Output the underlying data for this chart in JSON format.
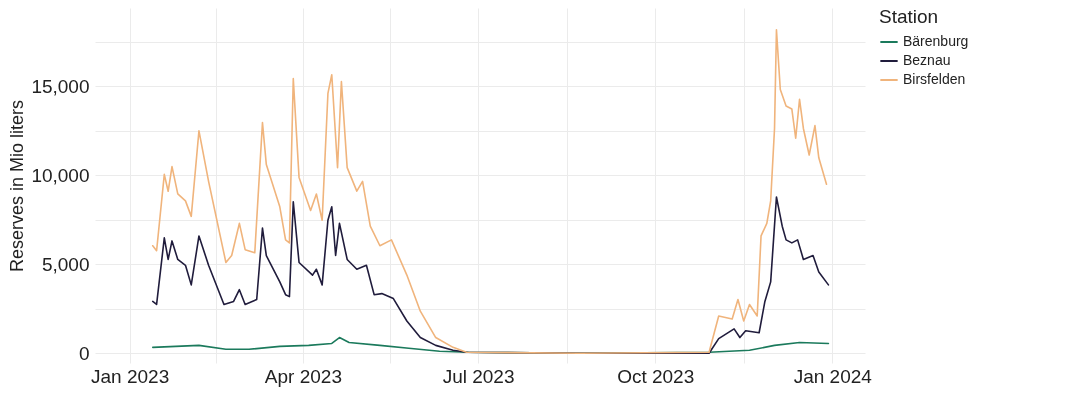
{
  "chart_data": {
    "type": "line",
    "ylabel": "Reserves in Mio liters",
    "legend_title": "Station",
    "legend": "right",
    "grid": true,
    "xlim": [
      "2022-12-14",
      "2024-01-18"
    ],
    "ylim": [
      -550,
      19400
    ],
    "xticks": [
      {
        "value": "2023-01-01",
        "label": "Jan 2023"
      },
      {
        "value": "2023-02-15",
        "label": null
      },
      {
        "value": "2023-04-01",
        "label": "Apr 2023"
      },
      {
        "value": "2023-05-16",
        "label": null
      },
      {
        "value": "2023-07-01",
        "label": "Jul 2023"
      },
      {
        "value": "2023-08-16",
        "label": null
      },
      {
        "value": "2023-10-01",
        "label": "Oct 2023"
      },
      {
        "value": "2023-11-16",
        "label": null
      },
      {
        "value": "2024-01-01",
        "label": "Jan 2024"
      }
    ],
    "yticks": [
      0,
      {
        "value": 2500,
        "label": null
      },
      {
        "value": 5000,
        "label": "5,000"
      },
      {
        "value": 7500,
        "label": null
      },
      {
        "value": 10000,
        "label": "10,000"
      },
      {
        "value": 12500,
        "label": null
      },
      {
        "value": 15000,
        "label": "15,000"
      },
      {
        "value": 17500,
        "label": null
      }
    ],
    "series": [
      {
        "name": "Bärenburg",
        "color": "#1b7a5c",
        "x": [
          "2023-01-13",
          "2023-02-06",
          "2023-02-20",
          "2023-03-04",
          "2023-03-20",
          "2023-04-04",
          "2023-04-16",
          "2023-04-20",
          "2023-04-25",
          "2023-05-11",
          "2023-05-26",
          "2023-06-11",
          "2023-06-26",
          "2023-08-23",
          "2023-10-29",
          "2023-11-19",
          "2023-12-02",
          "2023-12-15",
          "2023-12-30"
        ],
        "values": [
          330,
          440,
          220,
          220,
          385,
          440,
          550,
          880,
          600,
          440,
          275,
          110,
          55,
          0,
          55,
          165,
          440,
          600,
          550
        ]
      },
      {
        "name": "Beznau",
        "color": "#201c3c",
        "x": [
          "2023-01-13",
          "2023-01-15",
          "2023-01-19",
          "2023-01-21",
          "2023-01-23",
          "2023-01-26",
          "2023-01-30",
          "2023-02-02",
          "2023-02-06",
          "2023-02-11",
          "2023-02-19",
          "2023-02-24",
          "2023-02-27",
          "2023-03-02",
          "2023-03-08",
          "2023-03-11",
          "2023-03-13",
          "2023-03-20",
          "2023-03-23",
          "2023-03-25",
          "2023-03-27",
          "2023-03-30",
          "2023-04-06",
          "2023-04-08",
          "2023-04-11",
          "2023-04-14",
          "2023-04-16",
          "2023-04-18",
          "2023-04-20",
          "2023-04-24",
          "2023-04-29",
          "2023-05-04",
          "2023-05-08",
          "2023-05-12",
          "2023-05-18",
          "2023-05-25",
          "2023-06-01",
          "2023-06-09",
          "2023-06-18",
          "2023-06-25",
          "2023-08-23",
          "2023-10-29",
          "2023-11-03",
          "2023-11-11",
          "2023-11-14",
          "2023-11-17",
          "2023-11-24",
          "2023-11-27",
          "2023-11-30",
          "2023-12-03",
          "2023-12-06",
          "2023-12-08",
          "2023-12-11",
          "2023-12-14",
          "2023-12-17",
          "2023-12-22",
          "2023-12-25",
          "2023-12-30"
        ],
        "values": [
          2910,
          2740,
          6480,
          5270,
          6310,
          5270,
          4940,
          3840,
          6590,
          4940,
          2740,
          2910,
          3570,
          2740,
          3020,
          7030,
          5490,
          4010,
          3290,
          3180,
          8510,
          5100,
          4390,
          4720,
          3840,
          7470,
          8230,
          5490,
          7300,
          5270,
          4720,
          4940,
          3290,
          3350,
          3070,
          1810,
          880,
          440,
          165,
          55,
          0,
          0,
          820,
          1370,
          880,
          1260,
          1150,
          2910,
          4010,
          8780,
          7140,
          6370,
          6200,
          6370,
          5270,
          5490,
          4560,
          3840
        ]
      },
      {
        "name": "Birsfelden",
        "color": "#f0b47c",
        "x": [
          "2023-01-13",
          "2023-01-15",
          "2023-01-19",
          "2023-01-21",
          "2023-01-23",
          "2023-01-26",
          "2023-01-30",
          "2023-02-02",
          "2023-02-06",
          "2023-02-11",
          "2023-02-20",
          "2023-02-23",
          "2023-02-27",
          "2023-03-02",
          "2023-03-07",
          "2023-03-11",
          "2023-03-13",
          "2023-03-20",
          "2023-03-23",
          "2023-03-25",
          "2023-03-27",
          "2023-03-30",
          "2023-04-05",
          "2023-04-08",
          "2023-04-11",
          "2023-04-14",
          "2023-04-16",
          "2023-04-19",
          "2023-04-21",
          "2023-04-24",
          "2023-04-29",
          "2023-05-02",
          "2023-05-06",
          "2023-05-11",
          "2023-05-17",
          "2023-05-25",
          "2023-06-01",
          "2023-06-09",
          "2023-06-18",
          "2023-06-25",
          "2023-08-23",
          "2023-10-29",
          "2023-11-03",
          "2023-11-10",
          "2023-11-13",
          "2023-11-16",
          "2023-11-19",
          "2023-11-23",
          "2023-11-25",
          "2023-11-28",
          "2023-11-30",
          "2023-12-02",
          "2023-12-03",
          "2023-12-05",
          "2023-12-08",
          "2023-12-11",
          "2023-12-13",
          "2023-12-15",
          "2023-12-17",
          "2023-12-20",
          "2023-12-23",
          "2023-12-25",
          "2023-12-29"
        ],
        "values": [
          6040,
          5760,
          10050,
          9100,
          10490,
          8950,
          8560,
          7690,
          12500,
          9660,
          5100,
          5490,
          7300,
          5820,
          5650,
          12960,
          10600,
          8230,
          6370,
          6200,
          15430,
          9880,
          8020,
          8950,
          7470,
          14600,
          15650,
          10430,
          15260,
          10430,
          9110,
          9660,
          7140,
          6040,
          6370,
          4390,
          2360,
          880,
          330,
          55,
          0,
          50,
          2090,
          1920,
          3020,
          1810,
          2740,
          2090,
          6590,
          7300,
          8560,
          12630,
          18170,
          14820,
          13890,
          13720,
          12080,
          14270,
          12630,
          11140,
          12790,
          10980,
          9500
        ]
      }
    ]
  }
}
